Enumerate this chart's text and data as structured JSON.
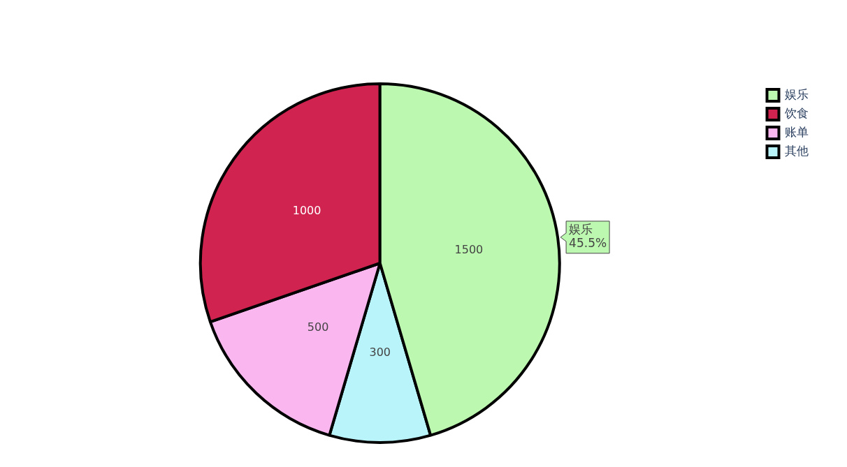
{
  "chart_data": {
    "type": "pie",
    "categories": [
      "娱乐",
      "饮食",
      "账单",
      "其他"
    ],
    "values": [
      1500,
      1000,
      500,
      300
    ],
    "colors": [
      "#bdf8b0",
      "#d0234f",
      "#f9b6ef",
      "#b9f4fb"
    ],
    "data_labels": true,
    "legend": "top right",
    "annotations": [
      "娱乐\n45.5%"
    ]
  }
}
